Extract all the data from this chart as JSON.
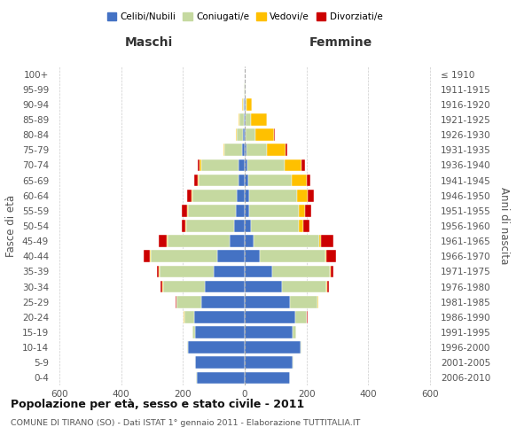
{
  "age_groups": [
    "0-4",
    "5-9",
    "10-14",
    "15-19",
    "20-24",
    "25-29",
    "30-34",
    "35-39",
    "40-44",
    "45-49",
    "50-54",
    "55-59",
    "60-64",
    "65-69",
    "70-74",
    "75-79",
    "80-84",
    "85-89",
    "90-94",
    "95-99",
    "100+"
  ],
  "birth_years": [
    "2006-2010",
    "2001-2005",
    "1996-2000",
    "1991-1995",
    "1986-1990",
    "1981-1985",
    "1976-1980",
    "1971-1975",
    "1966-1970",
    "1961-1965",
    "1956-1960",
    "1951-1955",
    "1946-1950",
    "1941-1945",
    "1936-1940",
    "1931-1935",
    "1926-1930",
    "1921-1925",
    "1916-1920",
    "1911-1915",
    "≤ 1910"
  ],
  "male": {
    "celibi": [
      155,
      160,
      185,
      160,
      165,
      140,
      130,
      100,
      90,
      50,
      35,
      30,
      25,
      20,
      20,
      10,
      5,
      4,
      2,
      1,
      0
    ],
    "coniugati": [
      2,
      2,
      3,
      10,
      30,
      80,
      135,
      175,
      215,
      200,
      155,
      155,
      145,
      130,
      120,
      55,
      20,
      12,
      5,
      1,
      0
    ],
    "vedovi": [
      0,
      0,
      0,
      0,
      2,
      2,
      2,
      2,
      3,
      3,
      3,
      3,
      3,
      3,
      5,
      5,
      5,
      3,
      2,
      0,
      0
    ],
    "divorziati": [
      0,
      0,
      0,
      0,
      2,
      2,
      5,
      8,
      20,
      25,
      12,
      15,
      15,
      10,
      8,
      0,
      0,
      0,
      0,
      0,
      0
    ]
  },
  "female": {
    "nubili": [
      145,
      155,
      180,
      155,
      165,
      145,
      120,
      90,
      50,
      30,
      20,
      15,
      15,
      12,
      10,
      7,
      4,
      3,
      2,
      1,
      0
    ],
    "coniugate": [
      2,
      2,
      5,
      12,
      35,
      90,
      145,
      185,
      210,
      210,
      155,
      160,
      155,
      140,
      120,
      65,
      30,
      18,
      5,
      1,
      0
    ],
    "vedove": [
      0,
      0,
      0,
      0,
      1,
      2,
      2,
      3,
      5,
      8,
      15,
      20,
      35,
      50,
      55,
      60,
      60,
      50,
      15,
      2,
      0
    ],
    "divorziate": [
      0,
      0,
      0,
      0,
      2,
      2,
      5,
      10,
      30,
      40,
      20,
      20,
      20,
      10,
      10,
      5,
      5,
      0,
      0,
      0,
      0
    ]
  },
  "colors": {
    "celibi": "#4472c4",
    "coniugati": "#c5d9a0",
    "vedovi": "#ffc000",
    "divorziati": "#cc0000"
  },
  "xlim": [
    -620,
    620
  ],
  "xticks": [
    -600,
    -400,
    -200,
    0,
    200,
    400,
    600
  ],
  "xtick_labels": [
    "600",
    "400",
    "200",
    "0",
    "200",
    "400",
    "600"
  ],
  "title": "Popolazione per età, sesso e stato civile - 2011",
  "subtitle": "COMUNE DI TIRANO (SO) - Dati ISTAT 1° gennaio 2011 - Elaborazione TUTTITALIA.IT",
  "ylabel_left": "Fasce di età",
  "ylabel_right": "Anni di nascita",
  "label_maschi": "Maschi",
  "label_femmine": "Femmine",
  "legend_labels": [
    "Celibi/Nubili",
    "Coniugati/e",
    "Vedovi/e",
    "Divorziati/e"
  ],
  "bg_color": "#ffffff",
  "grid_color": "#cccccc"
}
